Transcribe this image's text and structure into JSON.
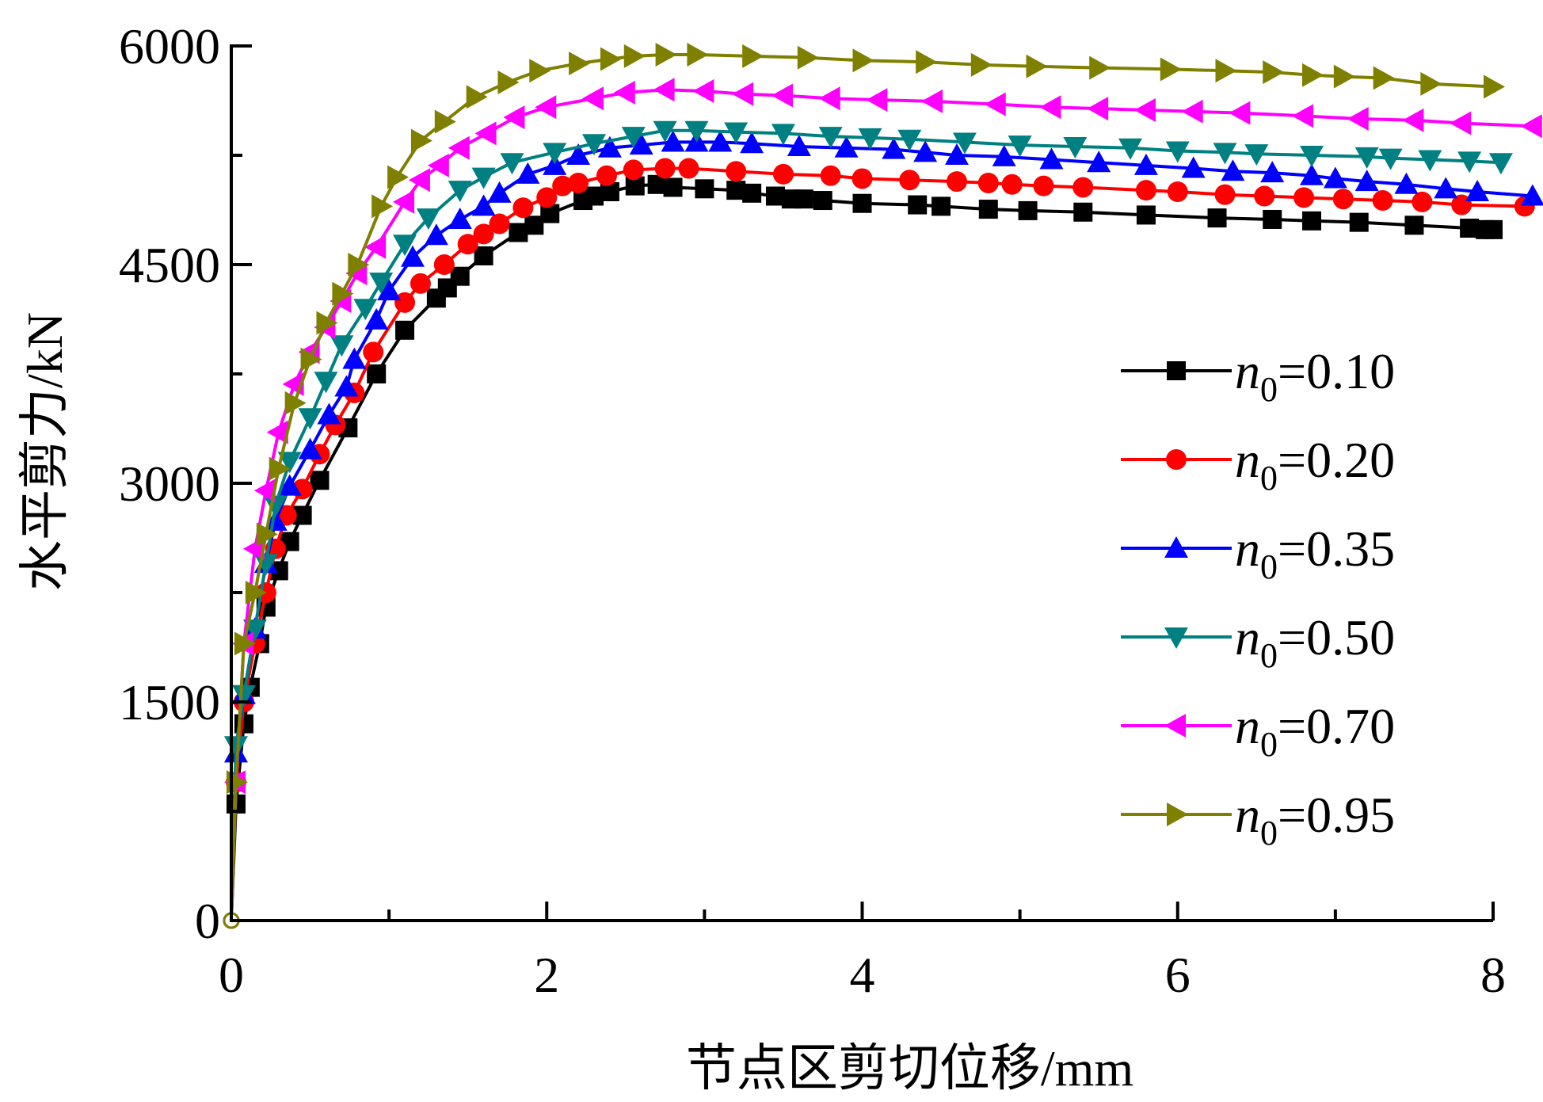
{
  "chart_data": {
    "type": "line",
    "title": "",
    "xlabel": "节点区剪切位移/mm",
    "ylabel": "水平剪力/kN",
    "xlim": [
      0,
      8.25
    ],
    "ylim": [
      0,
      6000
    ],
    "xticks": [
      0,
      2,
      4,
      6,
      8
    ],
    "xtick_labels": [
      "0",
      "2",
      "4",
      "6",
      "8"
    ],
    "yticks": [
      0,
      1500,
      3000,
      4500,
      6000
    ],
    "ytick_labels": [
      "0",
      "1500",
      "3000",
      "4500",
      "6000"
    ],
    "legend_position": "center-right",
    "series": [
      {
        "name": "n0=0.10",
        "legend_var": "n",
        "legend_sub": "0",
        "legend_value": "=0.10",
        "color": "#000000",
        "marker": "square",
        "points": [
          [
            0,
            0
          ],
          [
            0.03,
            800
          ],
          [
            0.08,
            1350
          ],
          [
            0.12,
            1600
          ],
          [
            0.18,
            1900
          ],
          [
            0.22,
            2150
          ],
          [
            0.3,
            2400
          ],
          [
            0.37,
            2600
          ],
          [
            0.45,
            2780
          ],
          [
            0.56,
            3020
          ],
          [
            0.74,
            3380
          ],
          [
            0.92,
            3750
          ],
          [
            1.1,
            4050
          ],
          [
            1.3,
            4270
          ],
          [
            1.37,
            4340
          ],
          [
            1.45,
            4420
          ],
          [
            1.6,
            4560
          ],
          [
            1.82,
            4720
          ],
          [
            1.92,
            4770
          ],
          [
            2.02,
            4850
          ],
          [
            2.23,
            4940
          ],
          [
            2.3,
            4970
          ],
          [
            2.4,
            5000
          ],
          [
            2.56,
            5040
          ],
          [
            2.7,
            5050
          ],
          [
            2.8,
            5030
          ],
          [
            3.0,
            5020
          ],
          [
            3.2,
            5010
          ],
          [
            3.3,
            4990
          ],
          [
            3.45,
            4970
          ],
          [
            3.55,
            4950
          ],
          [
            3.63,
            4950
          ],
          [
            3.75,
            4940
          ],
          [
            4.0,
            4920
          ],
          [
            4.35,
            4910
          ],
          [
            4.5,
            4900
          ],
          [
            4.8,
            4880
          ],
          [
            5.05,
            4870
          ],
          [
            5.4,
            4860
          ],
          [
            5.8,
            4840
          ],
          [
            6.25,
            4820
          ],
          [
            6.6,
            4810
          ],
          [
            6.85,
            4800
          ],
          [
            7.15,
            4790
          ],
          [
            7.5,
            4770
          ],
          [
            7.85,
            4750
          ],
          [
            7.95,
            4740
          ],
          [
            8.0,
            4740
          ]
        ]
      },
      {
        "name": "n0=0.20",
        "legend_var": "n",
        "legend_sub": "0",
        "legend_value": "=0.20",
        "color": "#ff0000",
        "marker": "circle",
        "points": [
          [
            0,
            0
          ],
          [
            0.03,
            950
          ],
          [
            0.08,
            1500
          ],
          [
            0.15,
            1900
          ],
          [
            0.22,
            2250
          ],
          [
            0.28,
            2550
          ],
          [
            0.35,
            2780
          ],
          [
            0.45,
            2960
          ],
          [
            0.56,
            3200
          ],
          [
            0.66,
            3400
          ],
          [
            0.78,
            3620
          ],
          [
            0.9,
            3900
          ],
          [
            1.1,
            4240
          ],
          [
            1.2,
            4370
          ],
          [
            1.35,
            4500
          ],
          [
            1.5,
            4640
          ],
          [
            1.6,
            4710
          ],
          [
            1.7,
            4780
          ],
          [
            1.85,
            4890
          ],
          [
            2.0,
            4960
          ],
          [
            2.1,
            5040
          ],
          [
            2.2,
            5060
          ],
          [
            2.38,
            5110
          ],
          [
            2.55,
            5150
          ],
          [
            2.75,
            5160
          ],
          [
            2.9,
            5160
          ],
          [
            3.2,
            5140
          ],
          [
            3.5,
            5120
          ],
          [
            3.8,
            5110
          ],
          [
            4.0,
            5090
          ],
          [
            4.3,
            5080
          ],
          [
            4.6,
            5070
          ],
          [
            4.8,
            5060
          ],
          [
            4.95,
            5050
          ],
          [
            5.15,
            5040
          ],
          [
            5.4,
            5030
          ],
          [
            5.8,
            5010
          ],
          [
            6.0,
            5000
          ],
          [
            6.3,
            4980
          ],
          [
            6.55,
            4970
          ],
          [
            6.8,
            4960
          ],
          [
            7.05,
            4950
          ],
          [
            7.3,
            4940
          ],
          [
            7.55,
            4930
          ],
          [
            7.8,
            4910
          ],
          [
            8.2,
            4900
          ]
        ]
      },
      {
        "name": "n0=0.35",
        "legend_var": "n",
        "legend_sub": "0",
        "legend_value": "=0.35",
        "color": "#0000ff",
        "marker": "triangle-up",
        "points": [
          [
            0,
            0
          ],
          [
            0.03,
            1150
          ],
          [
            0.08,
            1550
          ],
          [
            0.15,
            2000
          ],
          [
            0.22,
            2450
          ],
          [
            0.28,
            2740
          ],
          [
            0.37,
            2980
          ],
          [
            0.5,
            3230
          ],
          [
            0.62,
            3470
          ],
          [
            0.73,
            3660
          ],
          [
            0.78,
            3850
          ],
          [
            0.92,
            4120
          ],
          [
            1.0,
            4320
          ],
          [
            1.15,
            4550
          ],
          [
            1.3,
            4700
          ],
          [
            1.45,
            4810
          ],
          [
            1.6,
            4900
          ],
          [
            1.7,
            4990
          ],
          [
            1.88,
            5120
          ],
          [
            2.05,
            5180
          ],
          [
            2.2,
            5250
          ],
          [
            2.4,
            5300
          ],
          [
            2.6,
            5320
          ],
          [
            2.8,
            5340
          ],
          [
            2.95,
            5340
          ],
          [
            3.1,
            5340
          ],
          [
            3.3,
            5330
          ],
          [
            3.6,
            5310
          ],
          [
            3.9,
            5300
          ],
          [
            4.2,
            5290
          ],
          [
            4.4,
            5270
          ],
          [
            4.6,
            5250
          ],
          [
            4.9,
            5240
          ],
          [
            5.2,
            5220
          ],
          [
            5.5,
            5200
          ],
          [
            5.8,
            5180
          ],
          [
            6.1,
            5160
          ],
          [
            6.35,
            5140
          ],
          [
            6.6,
            5130
          ],
          [
            6.85,
            5110
          ],
          [
            7.0,
            5090
          ],
          [
            7.2,
            5070
          ],
          [
            7.45,
            5050
          ],
          [
            7.7,
            5020
          ],
          [
            7.9,
            5000
          ],
          [
            8.25,
            4970
          ]
        ]
      },
      {
        "name": "n0=0.50",
        "legend_var": "n",
        "legend_sub": "0",
        "legend_value": "=0.50",
        "color": "#008080",
        "marker": "triangle-down",
        "points": [
          [
            0,
            0
          ],
          [
            0.03,
            1200
          ],
          [
            0.08,
            1550
          ],
          [
            0.15,
            2000
          ],
          [
            0.22,
            2450
          ],
          [
            0.28,
            2850
          ],
          [
            0.37,
            3150
          ],
          [
            0.5,
            3450
          ],
          [
            0.6,
            3700
          ],
          [
            0.7,
            3950
          ],
          [
            0.85,
            4200
          ],
          [
            0.95,
            4380
          ],
          [
            1.1,
            4640
          ],
          [
            1.25,
            4820
          ],
          [
            1.45,
            5010
          ],
          [
            1.6,
            5100
          ],
          [
            1.78,
            5200
          ],
          [
            2.05,
            5270
          ],
          [
            2.3,
            5330
          ],
          [
            2.55,
            5380
          ],
          [
            2.75,
            5420
          ],
          [
            2.95,
            5420
          ],
          [
            3.2,
            5410
          ],
          [
            3.5,
            5400
          ],
          [
            3.8,
            5380
          ],
          [
            4.05,
            5370
          ],
          [
            4.3,
            5360
          ],
          [
            4.65,
            5340
          ],
          [
            5.0,
            5320
          ],
          [
            5.35,
            5310
          ],
          [
            5.7,
            5300
          ],
          [
            6.0,
            5280
          ],
          [
            6.3,
            5270
          ],
          [
            6.5,
            5260
          ],
          [
            6.85,
            5250
          ],
          [
            7.2,
            5240
          ],
          [
            7.35,
            5230
          ],
          [
            7.6,
            5220
          ],
          [
            7.85,
            5210
          ],
          [
            8.05,
            5200
          ]
        ]
      },
      {
        "name": "n0=0.70",
        "legend_var": "n",
        "legend_sub": "0",
        "legend_value": "=0.70",
        "color": "#ff00ff",
        "marker": "triangle-left",
        "points": [
          [
            0,
            0
          ],
          [
            0.03,
            950
          ],
          [
            0.08,
            1900
          ],
          [
            0.15,
            2550
          ],
          [
            0.22,
            2950
          ],
          [
            0.3,
            3350
          ],
          [
            0.4,
            3680
          ],
          [
            0.5,
            3900
          ],
          [
            0.6,
            4070
          ],
          [
            0.7,
            4250
          ],
          [
            0.8,
            4440
          ],
          [
            0.92,
            4620
          ],
          [
            1.1,
            4930
          ],
          [
            1.2,
            5080
          ],
          [
            1.32,
            5180
          ],
          [
            1.45,
            5300
          ],
          [
            1.62,
            5400
          ],
          [
            1.8,
            5510
          ],
          [
            2.0,
            5580
          ],
          [
            2.3,
            5640
          ],
          [
            2.5,
            5680
          ],
          [
            2.75,
            5700
          ],
          [
            3.0,
            5690
          ],
          [
            3.25,
            5670
          ],
          [
            3.5,
            5660
          ],
          [
            3.8,
            5640
          ],
          [
            4.1,
            5630
          ],
          [
            4.45,
            5620
          ],
          [
            4.85,
            5600
          ],
          [
            5.2,
            5580
          ],
          [
            5.5,
            5570
          ],
          [
            5.8,
            5560
          ],
          [
            6.1,
            5550
          ],
          [
            6.4,
            5540
          ],
          [
            6.8,
            5520
          ],
          [
            7.15,
            5500
          ],
          [
            7.5,
            5490
          ],
          [
            7.8,
            5470
          ],
          [
            8.25,
            5450
          ]
        ]
      },
      {
        "name": "n0=0.95",
        "legend_var": "n",
        "legend_sub": "0",
        "legend_value": "=0.95",
        "color": "#808000",
        "marker": "triangle-right",
        "points": [
          [
            0,
            0
          ],
          [
            0.03,
            950
          ],
          [
            0.08,
            1900
          ],
          [
            0.15,
            2250
          ],
          [
            0.22,
            2650
          ],
          [
            0.3,
            3100
          ],
          [
            0.4,
            3550
          ],
          [
            0.5,
            3850
          ],
          [
            0.6,
            4100
          ],
          [
            0.7,
            4300
          ],
          [
            0.8,
            4500
          ],
          [
            0.95,
            4900
          ],
          [
            1.05,
            5100
          ],
          [
            1.2,
            5350
          ],
          [
            1.35,
            5480
          ],
          [
            1.55,
            5650
          ],
          [
            1.75,
            5750
          ],
          [
            1.95,
            5830
          ],
          [
            2.2,
            5880
          ],
          [
            2.4,
            5910
          ],
          [
            2.55,
            5930
          ],
          [
            2.75,
            5940
          ],
          [
            2.95,
            5940
          ],
          [
            3.3,
            5930
          ],
          [
            3.65,
            5920
          ],
          [
            4.0,
            5900
          ],
          [
            4.4,
            5890
          ],
          [
            4.75,
            5870
          ],
          [
            5.1,
            5860
          ],
          [
            5.5,
            5850
          ],
          [
            5.95,
            5840
          ],
          [
            6.3,
            5830
          ],
          [
            6.6,
            5820
          ],
          [
            6.85,
            5800
          ],
          [
            7.05,
            5790
          ],
          [
            7.3,
            5780
          ],
          [
            7.6,
            5740
          ],
          [
            8.0,
            5720
          ]
        ]
      }
    ]
  }
}
